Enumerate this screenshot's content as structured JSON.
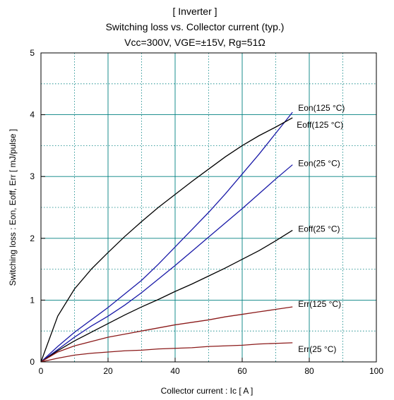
{
  "title_lines": [
    "[ Inverter ]",
    "Switching loss  vs.  Collector current  (typ.)",
    "Vcc=300V, VGE=±15V, Rg=51Ω"
  ],
  "colors": {
    "grid_major": "#008080",
    "grid_minor": "#008080",
    "blue_series": "#1a1aa8",
    "black_series": "#000000",
    "red_series": "#8b1a1a"
  },
  "chart_data": {
    "type": "line",
    "title": "[ Inverter ] Switching loss vs. Collector current (typ.) Vcc=300V, VGE=±15V, Rg=51Ω",
    "xlabel": "Collector current  :  Ic  [ A ]",
    "ylabel": "Switching loss  :  Eon, Eoff, Err  [ mJ/pulse ]",
    "xlim": [
      0,
      100
    ],
    "ylim": [
      0,
      5
    ],
    "xticks": [
      "0",
      "20",
      "40",
      "60",
      "80",
      "100"
    ],
    "yticks": [
      "0",
      "1",
      "2",
      "3",
      "4",
      "5"
    ],
    "grid": "on",
    "series": [
      {
        "name": "Eon(125 °C)",
        "color": "#1a1aa8",
        "x": [
          0,
          5,
          10,
          15,
          20,
          25,
          30,
          35,
          40,
          45,
          50,
          55,
          60,
          65,
          70,
          75
        ],
        "y": [
          0,
          0.25,
          0.48,
          0.68,
          0.88,
          1.1,
          1.32,
          1.58,
          1.86,
          2.14,
          2.42,
          2.72,
          3.04,
          3.36,
          3.7,
          4.04
        ]
      },
      {
        "name": "Eoff(125 °C)",
        "color": "#000000",
        "x": [
          0,
          5,
          10,
          15,
          20,
          25,
          30,
          35,
          40,
          45,
          50,
          55,
          60,
          65,
          70,
          75
        ],
        "y": [
          0,
          0.74,
          1.18,
          1.5,
          1.77,
          2.03,
          2.27,
          2.5,
          2.71,
          2.92,
          3.12,
          3.32,
          3.5,
          3.66,
          3.8,
          3.95
        ]
      },
      {
        "name": "Eon(25 °C)",
        "color": "#1a1aa8",
        "x": [
          0,
          5,
          10,
          15,
          20,
          25,
          30,
          35,
          40,
          45,
          50,
          55,
          60,
          65,
          70,
          75
        ],
        "y": [
          0,
          0.2,
          0.4,
          0.58,
          0.74,
          0.92,
          1.12,
          1.34,
          1.56,
          1.79,
          2.02,
          2.25,
          2.48,
          2.72,
          2.96,
          3.19
        ]
      },
      {
        "name": "Eoff(25 °C)",
        "color": "#000000",
        "x": [
          0,
          5,
          10,
          15,
          20,
          25,
          30,
          35,
          40,
          45,
          50,
          55,
          60,
          65,
          70,
          75
        ],
        "y": [
          0,
          0.18,
          0.34,
          0.48,
          0.62,
          0.76,
          0.89,
          1.01,
          1.14,
          1.26,
          1.39,
          1.52,
          1.66,
          1.8,
          1.96,
          2.13
        ]
      },
      {
        "name": "Err(125 °C)",
        "color": "#8b1a1a",
        "x": [
          0,
          5,
          10,
          15,
          20,
          25,
          30,
          35,
          40,
          45,
          50,
          55,
          60,
          65,
          70,
          75
        ],
        "y": [
          0,
          0.16,
          0.26,
          0.33,
          0.4,
          0.45,
          0.5,
          0.55,
          0.6,
          0.64,
          0.68,
          0.73,
          0.77,
          0.81,
          0.85,
          0.89
        ]
      },
      {
        "name": "Err(25 °C)",
        "color": "#8b1a1a",
        "x": [
          0,
          5,
          10,
          15,
          20,
          25,
          30,
          35,
          40,
          45,
          50,
          55,
          60,
          65,
          70,
          75
        ],
        "y": [
          0,
          0.06,
          0.11,
          0.14,
          0.16,
          0.18,
          0.19,
          0.21,
          0.22,
          0.23,
          0.25,
          0.26,
          0.27,
          0.29,
          0.3,
          0.31
        ]
      }
    ]
  }
}
